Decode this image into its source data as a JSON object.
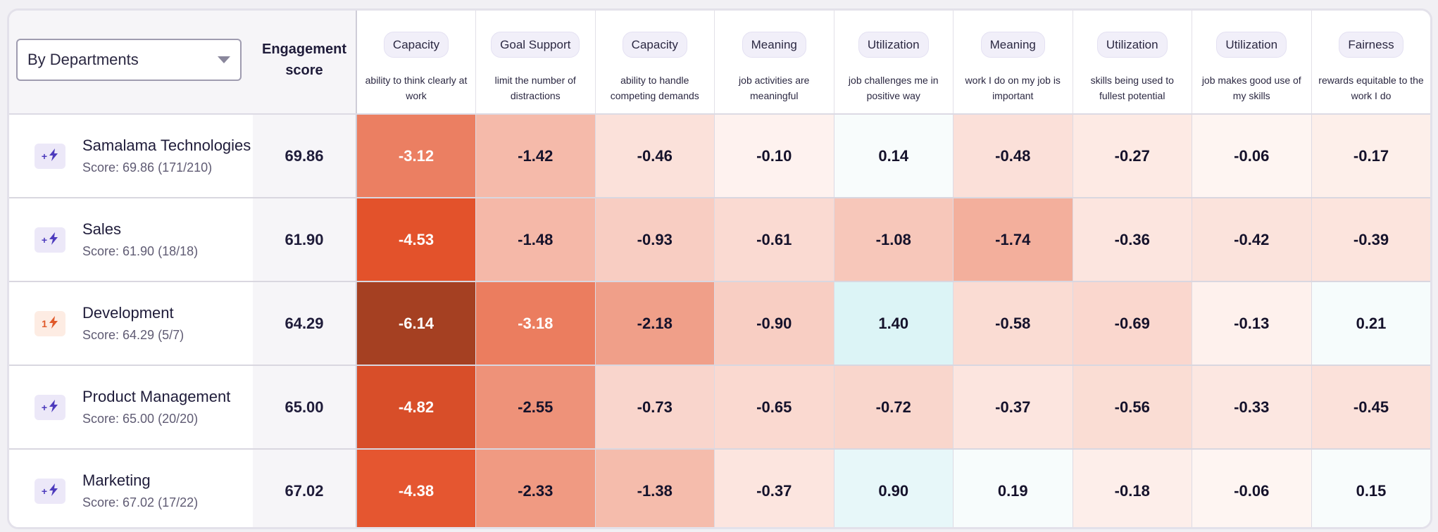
{
  "filter": {
    "selected": "By Departments"
  },
  "columns": {
    "score_header": "Engagement score",
    "questions": [
      {
        "category": "Capacity",
        "description": "ability to think clearly at work"
      },
      {
        "category": "Goal Support",
        "description": "limit the number of distractions"
      },
      {
        "category": "Capacity",
        "description": "ability to handle competing demands"
      },
      {
        "category": "Meaning",
        "description": "job activities are meaningful"
      },
      {
        "category": "Utilization",
        "description": "job challenges me in positive way"
      },
      {
        "category": "Meaning",
        "description": "work I do on my job is important"
      },
      {
        "category": "Utilization",
        "description": "skills being used to fullest potential"
      },
      {
        "category": "Utilization",
        "description": "job makes good use of my skills"
      },
      {
        "category": "Fairness",
        "description": "rewards equitable to the work I do"
      }
    ]
  },
  "rows": [
    {
      "name": "Samalama Technologies",
      "badge": "+",
      "badge_style": "purple",
      "score_line": "Score: 69.86 (171/210)",
      "score": "69.86",
      "values": [
        "-3.12",
        "-1.42",
        "-0.46",
        "-0.10",
        "0.14",
        "-0.48",
        "-0.27",
        "-0.06",
        "-0.17"
      ]
    },
    {
      "name": "Sales",
      "badge": "+",
      "badge_style": "purple",
      "score_line": "Score: 61.90 (18/18)",
      "score": "61.90",
      "values": [
        "-4.53",
        "-1.48",
        "-0.93",
        "-0.61",
        "-1.08",
        "-1.74",
        "-0.36",
        "-0.42",
        "-0.39"
      ]
    },
    {
      "name": "Development",
      "badge": "1",
      "badge_style": "orange",
      "score_line": "Score: 64.29 (5/7)",
      "score": "64.29",
      "values": [
        "-6.14",
        "-3.18",
        "-2.18",
        "-0.90",
        "1.40",
        "-0.58",
        "-0.69",
        "-0.13",
        "0.21"
      ]
    },
    {
      "name": "Product Management",
      "badge": "+",
      "badge_style": "purple",
      "score_line": "Score: 65.00 (20/20)",
      "score": "65.00",
      "values": [
        "-4.82",
        "-2.55",
        "-0.73",
        "-0.65",
        "-0.72",
        "-0.37",
        "-0.56",
        "-0.33",
        "-0.45"
      ]
    },
    {
      "name": "Marketing",
      "badge": "+",
      "badge_style": "purple",
      "score_line": "Score: 67.02 (17/22)",
      "score": "67.02",
      "values": [
        "-4.38",
        "-2.33",
        "-1.38",
        "-0.37",
        "0.90",
        "0.19",
        "-0.18",
        "-0.06",
        "0.15"
      ]
    }
  ],
  "colors": {
    "negative": "#e4522b",
    "negative_deep": "#a33f22",
    "positive": "#dcf4f6",
    "header_bg": "#f6f5f8",
    "accent": "#4d3bbd"
  }
}
